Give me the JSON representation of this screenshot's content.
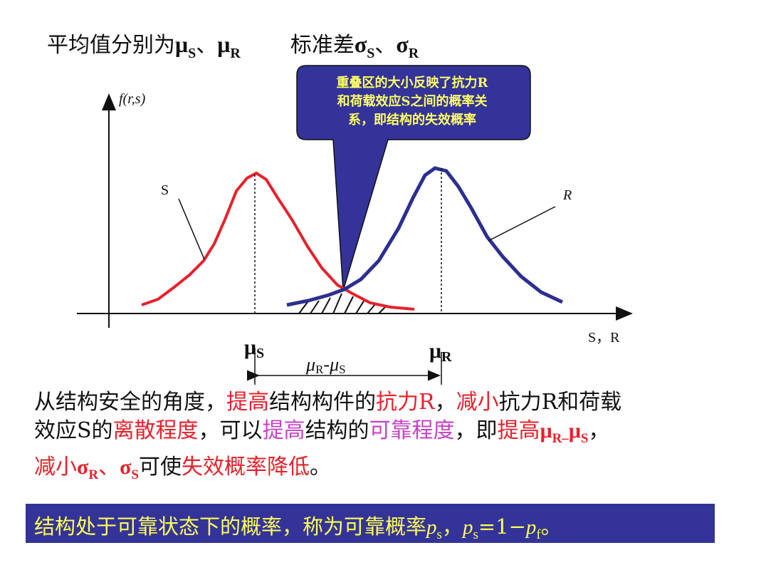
{
  "title": {
    "text1": "平均值分别为",
    "mu": "μ",
    "sub_s": "S",
    "sep": "、",
    "sub_r": "R",
    "text2": "标准差",
    "sigma": "σ"
  },
  "callout": {
    "line1": "重叠区的大小反映了抗力R",
    "line2": "和荷载效应S之间的概率关",
    "line3": "系，即结构的失效概率",
    "fill_color": "#333399",
    "text_color": "#ffff66"
  },
  "diagram": {
    "y_axis_label": "f(r,s)",
    "x_axis_label": "S，R",
    "curve_s_label": "S",
    "curve_r_label": "R",
    "mu_s_label": "μ",
    "mu_s_sub": "S",
    "mu_r_label": "μ",
    "mu_r_sub": "R",
    "diff_label_mu1": "μ",
    "diff_label_r": "R",
    "diff_label_dash": "-",
    "diff_label_mu2": "μ",
    "diff_label_s": "S",
    "curve_s_color": "#e8202a",
    "curve_r_color": "#2c2f8f"
  },
  "paragraph": {
    "p1": "从结构安全的角度，",
    "p2": "提高",
    "p3": "结构构件的",
    "p4": "抗力R",
    "p5": "，",
    "p6": "减小",
    "p7": "抗力R和荷载",
    "p8": "效应S的",
    "p9": "离散程度",
    "p10": "，可以",
    "p11": "提高",
    "p12": "结构的",
    "p13": "可靠程度",
    "p14": "，即",
    "p15": "提高",
    "p16": "μ",
    "p17": "R–",
    "p18": "μ",
    "p19": "S",
    "p20": "，",
    "p21": "减小",
    "p22": "σ",
    "p23": "R",
    "p24": "、",
    "p25": "σ",
    "p26": "S",
    "p27": "可使",
    "p28": "失效概率降低",
    "p29": "。"
  },
  "bottom": {
    "t1": "结构处于可靠状态下的概率，称为可靠概率",
    "ps": "p",
    "s": "s",
    "comma": "，",
    "ps2": "p",
    "s2": "s",
    "eq": "=1−",
    "pf": "p",
    "f": "f",
    "end": "。",
    "bg_color": "#333399",
    "text_color": "#ffff55"
  }
}
